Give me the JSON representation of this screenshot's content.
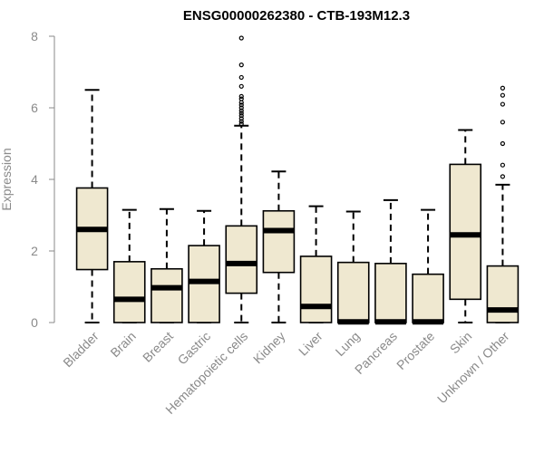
{
  "chart_data": {
    "type": "boxplot",
    "title": "ENSG00000262380 - CTB-193M12.3",
    "xlabel": "",
    "ylabel": "Expression",
    "ylim": [
      0,
      8
    ],
    "yticks": [
      0,
      2,
      4,
      6,
      8
    ],
    "grid": false,
    "legend": "none",
    "colors": {
      "box_fill": "#efe8d0",
      "box_stroke": "#000000",
      "axis": "#8a8a8a"
    },
    "categories": [
      "Bladder",
      "Brain",
      "Breast",
      "Gastric",
      "Hematopoietic cells",
      "Kidney",
      "Liver",
      "Lung",
      "Pancreas",
      "Prostate",
      "Skin",
      "Unknown / Other"
    ],
    "boxes": [
      {
        "min": 0.0,
        "q1": 1.48,
        "median": 2.6,
        "q3": 3.76,
        "max": 6.5,
        "outliers": []
      },
      {
        "min": 0.0,
        "q1": 0.0,
        "median": 0.65,
        "q3": 1.7,
        "max": 3.15,
        "outliers": []
      },
      {
        "min": 0.0,
        "q1": 0.0,
        "median": 0.97,
        "q3": 1.5,
        "max": 3.17,
        "outliers": []
      },
      {
        "min": 0.0,
        "q1": 0.0,
        "median": 1.15,
        "q3": 2.15,
        "max": 3.12,
        "outliers": []
      },
      {
        "min": 0.0,
        "q1": 0.82,
        "median": 1.65,
        "q3": 2.7,
        "max": 5.5,
        "outliers": [
          5.55,
          5.62,
          5.7,
          5.78,
          5.85,
          5.92,
          6.0,
          6.08,
          6.15,
          6.25,
          6.32,
          6.6,
          6.85,
          7.2,
          7.95
        ]
      },
      {
        "min": 0.0,
        "q1": 1.4,
        "median": 2.57,
        "q3": 3.12,
        "max": 4.22,
        "outliers": []
      },
      {
        "min": 0.0,
        "q1": 0.0,
        "median": 0.45,
        "q3": 1.85,
        "max": 3.25,
        "outliers": []
      },
      {
        "min": 0.0,
        "q1": 0.0,
        "median": 0.02,
        "q3": 1.68,
        "max": 3.1,
        "outliers": []
      },
      {
        "min": 0.0,
        "q1": 0.0,
        "median": 0.02,
        "q3": 1.65,
        "max": 3.42,
        "outliers": []
      },
      {
        "min": 0.0,
        "q1": 0.0,
        "median": 0.02,
        "q3": 1.35,
        "max": 3.15,
        "outliers": []
      },
      {
        "min": 0.0,
        "q1": 0.65,
        "median": 2.45,
        "q3": 4.42,
        "max": 5.38,
        "outliers": []
      },
      {
        "min": 0.0,
        "q1": 0.0,
        "median": 0.35,
        "q3": 1.58,
        "max": 3.85,
        "outliers": [
          4.08,
          4.4,
          5.0,
          5.6,
          6.1,
          6.35,
          6.55
        ]
      }
    ]
  }
}
